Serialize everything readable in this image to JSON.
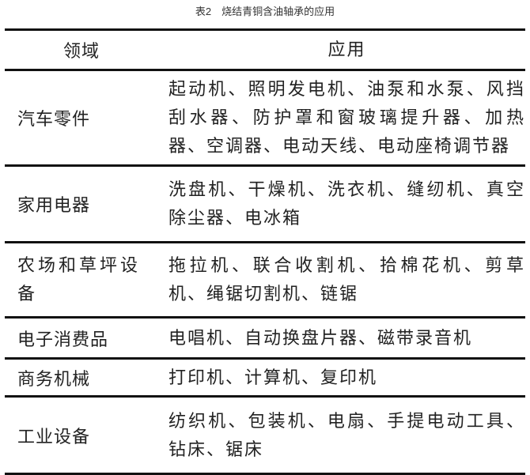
{
  "caption": "表2　烧结青铜含油轴承的应用",
  "table": {
    "headers": [
      "领域",
      "应用"
    ],
    "rows": [
      {
        "field": "汽车零件",
        "application": "起动机、照明发电机、油泵和水泵、风挡刮水器、防护罩和窗玻璃提升器、加热器、空调器、电动天线、电动座椅调节器"
      },
      {
        "field": "家用电器",
        "application": "洗盘机、干燥机、洗衣机、缝纫机、真空除尘器、电冰箱"
      },
      {
        "field": "农场和草坪设备",
        "application": "拖拉机、联合收割机、拾棉花机、剪草机、绳锯切割机、链锯"
      },
      {
        "field": "电子消费品",
        "application": "电唱机、自动换盘片器、磁带录音机"
      },
      {
        "field": "商务机械",
        "application": "打印机、计算机、复印机"
      },
      {
        "field": "工业设备",
        "application": "纺织机、包装机、电扇、手提电动工具、钻床、锯床"
      }
    ]
  }
}
